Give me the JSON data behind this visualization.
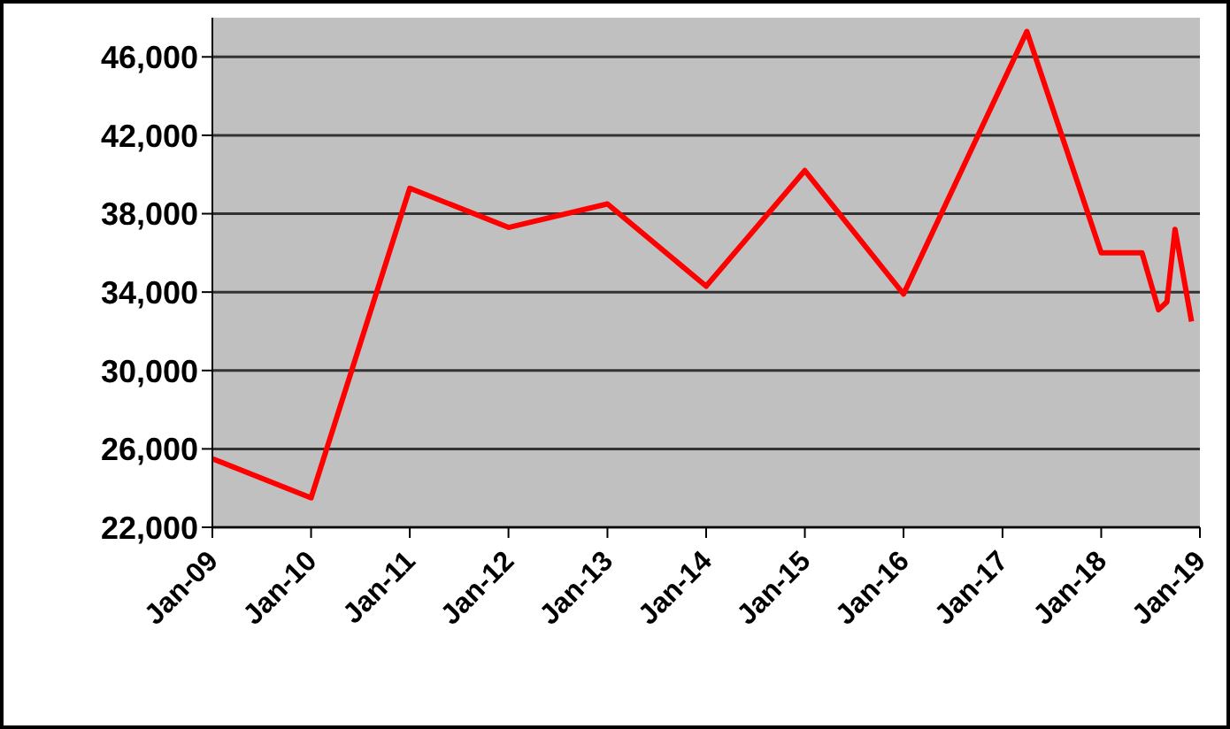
{
  "chart_data": {
    "type": "line",
    "x": [
      "2009-01",
      "2010-01",
      "2011-01",
      "2012-01",
      "2013-01",
      "2014-01",
      "2015-01",
      "2016-01",
      "2017-04",
      "2018-01",
      "2018-06",
      "2018-08",
      "2018-09",
      "2018-10",
      "2018-12"
    ],
    "series": [
      {
        "color": "#ff0000",
        "values": [
          25500,
          23500,
          39300,
          37300,
          38500,
          34300,
          40200,
          33900,
          47300,
          36000,
          36000,
          33100,
          33500,
          37200,
          32500
        ]
      }
    ],
    "xlim": [
      "2009-01",
      "2019-01"
    ],
    "xticks": [
      {
        "value": "2009-01",
        "label": "Jan-09"
      },
      {
        "value": "2010-01",
        "label": "Jan-10"
      },
      {
        "value": "2011-01",
        "label": "Jan-11"
      },
      {
        "value": "2012-01",
        "label": "Jan-12"
      },
      {
        "value": "2013-01",
        "label": "Jan-13"
      },
      {
        "value": "2014-01",
        "label": "Jan-14"
      },
      {
        "value": "2015-01",
        "label": "Jan-15"
      },
      {
        "value": "2016-01",
        "label": "Jan-16"
      },
      {
        "value": "2017-01",
        "label": "Jan-17"
      },
      {
        "value": "2018-01",
        "label": "Jan-18"
      },
      {
        "value": "2019-01",
        "label": "Jan-19"
      }
    ],
    "ylim": [
      22000,
      48000
    ],
    "yticks": [
      {
        "value": 22000,
        "label": "22,000"
      },
      {
        "value": 26000,
        "label": "26,000"
      },
      {
        "value": 30000,
        "label": "30,000"
      },
      {
        "value": 34000,
        "label": "34,000"
      },
      {
        "value": 38000,
        "label": "38,000"
      },
      {
        "value": 42000,
        "label": "42,000"
      },
      {
        "value": 46000,
        "label": "46,000"
      }
    ],
    "grid": "y",
    "legend": false,
    "marker": "none",
    "line_style": "solid"
  }
}
